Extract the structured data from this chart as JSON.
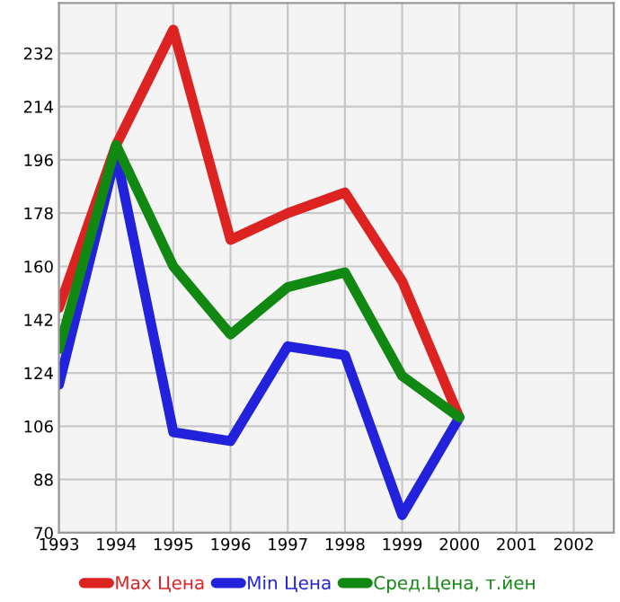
{
  "chart_data": {
    "type": "line",
    "x": [
      1993,
      1994,
      1995,
      1996,
      1997,
      1998,
      1999,
      2000
    ],
    "series": [
      {
        "name": "Max Цена",
        "color": "#dd2222",
        "values": [
          146,
          201,
          240,
          169,
          178,
          185,
          155,
          109
        ]
      },
      {
        "name": "Min Цена",
        "color": "#2222dd",
        "values": [
          120,
          198,
          104,
          101,
          133,
          130,
          76,
          109
        ]
      },
      {
        "name": "Сред.Цена, т.йен",
        "color": "#118811",
        "values": [
          132,
          201,
          160,
          137,
          153,
          158,
          123,
          109
        ]
      }
    ],
    "xlim": [
      1993,
      2002.7
    ],
    "xticks": [
      1993,
      1994,
      1995,
      1996,
      1997,
      1998,
      1999,
      2000,
      2001,
      2002
    ],
    "ylim": [
      70,
      249
    ],
    "yticks": [
      70,
      88,
      106,
      124,
      142,
      160,
      178,
      196,
      214,
      232
    ],
    "grid": true,
    "legend": "bottom",
    "marker": "none",
    "line_style": "solid"
  }
}
